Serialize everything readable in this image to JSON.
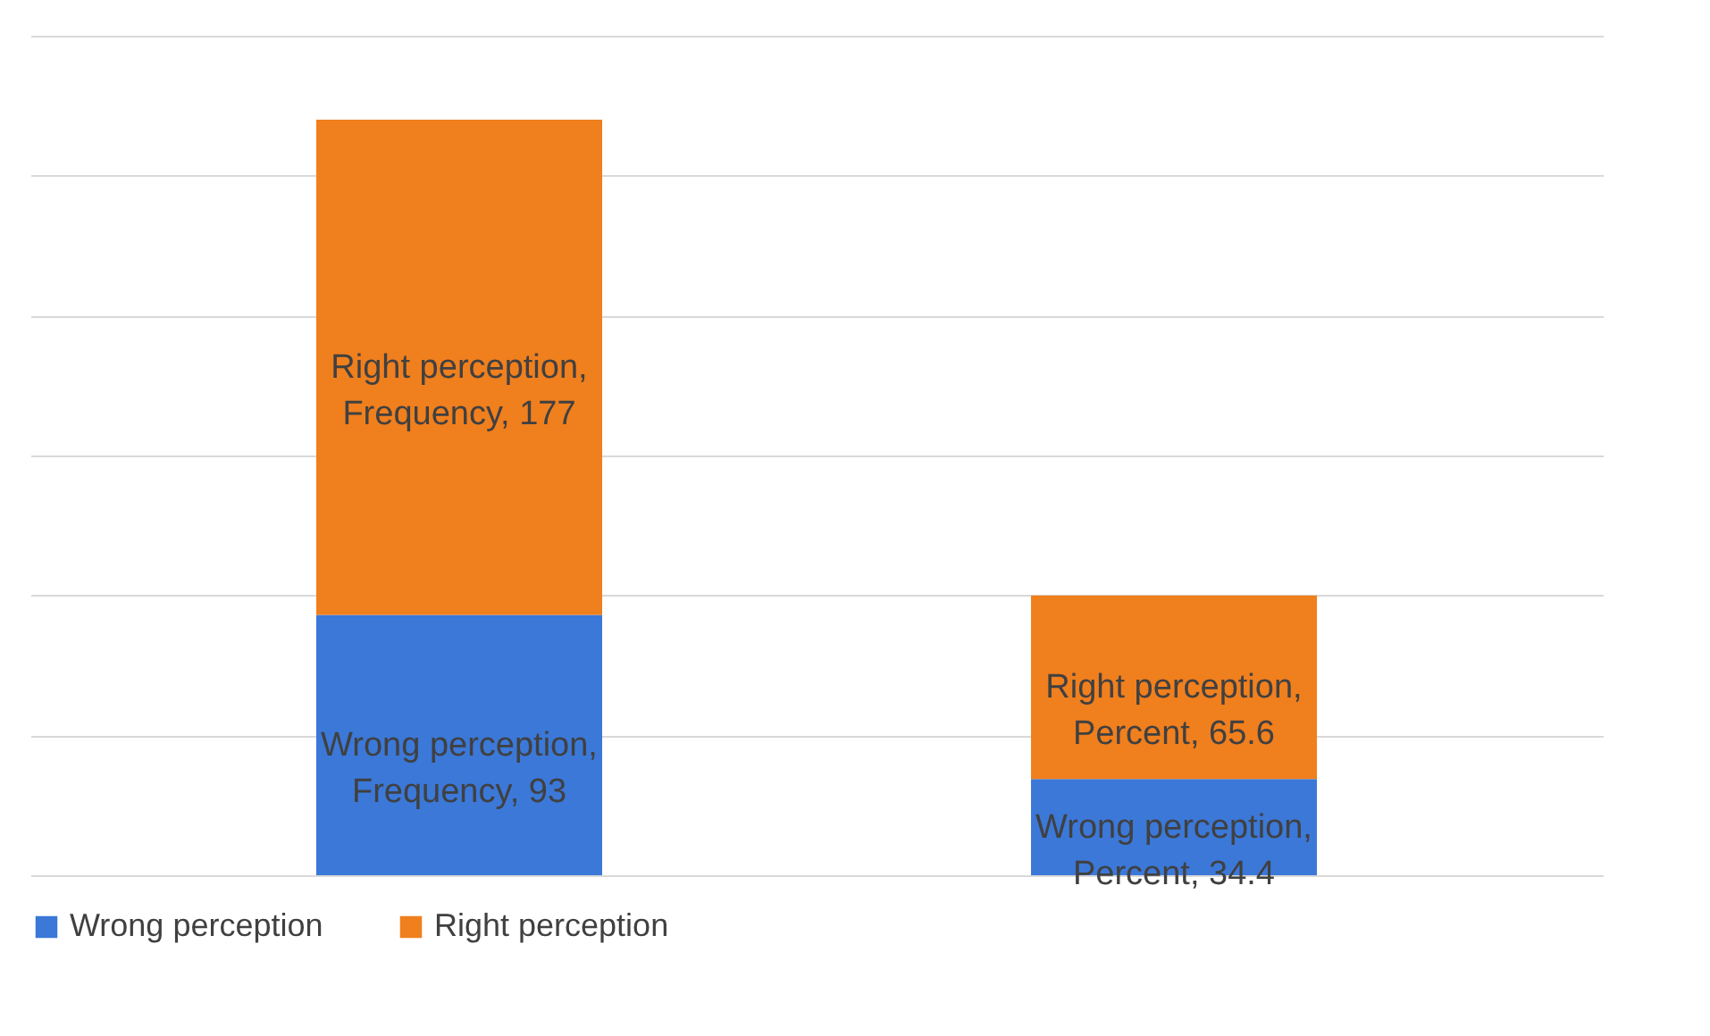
{
  "chart_data": {
    "type": "bar",
    "stacked": true,
    "categories": [
      null,
      null
    ],
    "series": [
      {
        "name": "Wrong perception",
        "color": "#3b78d8",
        "values": [
          93,
          34.4
        ],
        "value_labels": [
          "Wrong perception, Frequency, 93",
          "Wrong perception, Percent, 34.4"
        ]
      },
      {
        "name": "Right perception",
        "color": "#f07f1e",
        "values": [
          177,
          65.6
        ],
        "value_labels": [
          "Right perception, Frequency, 177",
          "Right perception, Percent, 65.6"
        ]
      }
    ],
    "ylim": [
      0,
      300
    ],
    "yticks": [
      {
        "value": 0,
        "label": null
      },
      {
        "value": 50,
        "label": null
      },
      {
        "value": 100,
        "label": null
      },
      {
        "value": 150,
        "label": null
      },
      {
        "value": 200,
        "label": null
      },
      {
        "value": 250,
        "label": null
      },
      {
        "value": 300,
        "label": null
      }
    ],
    "grid": "y",
    "legend": "bottom"
  }
}
